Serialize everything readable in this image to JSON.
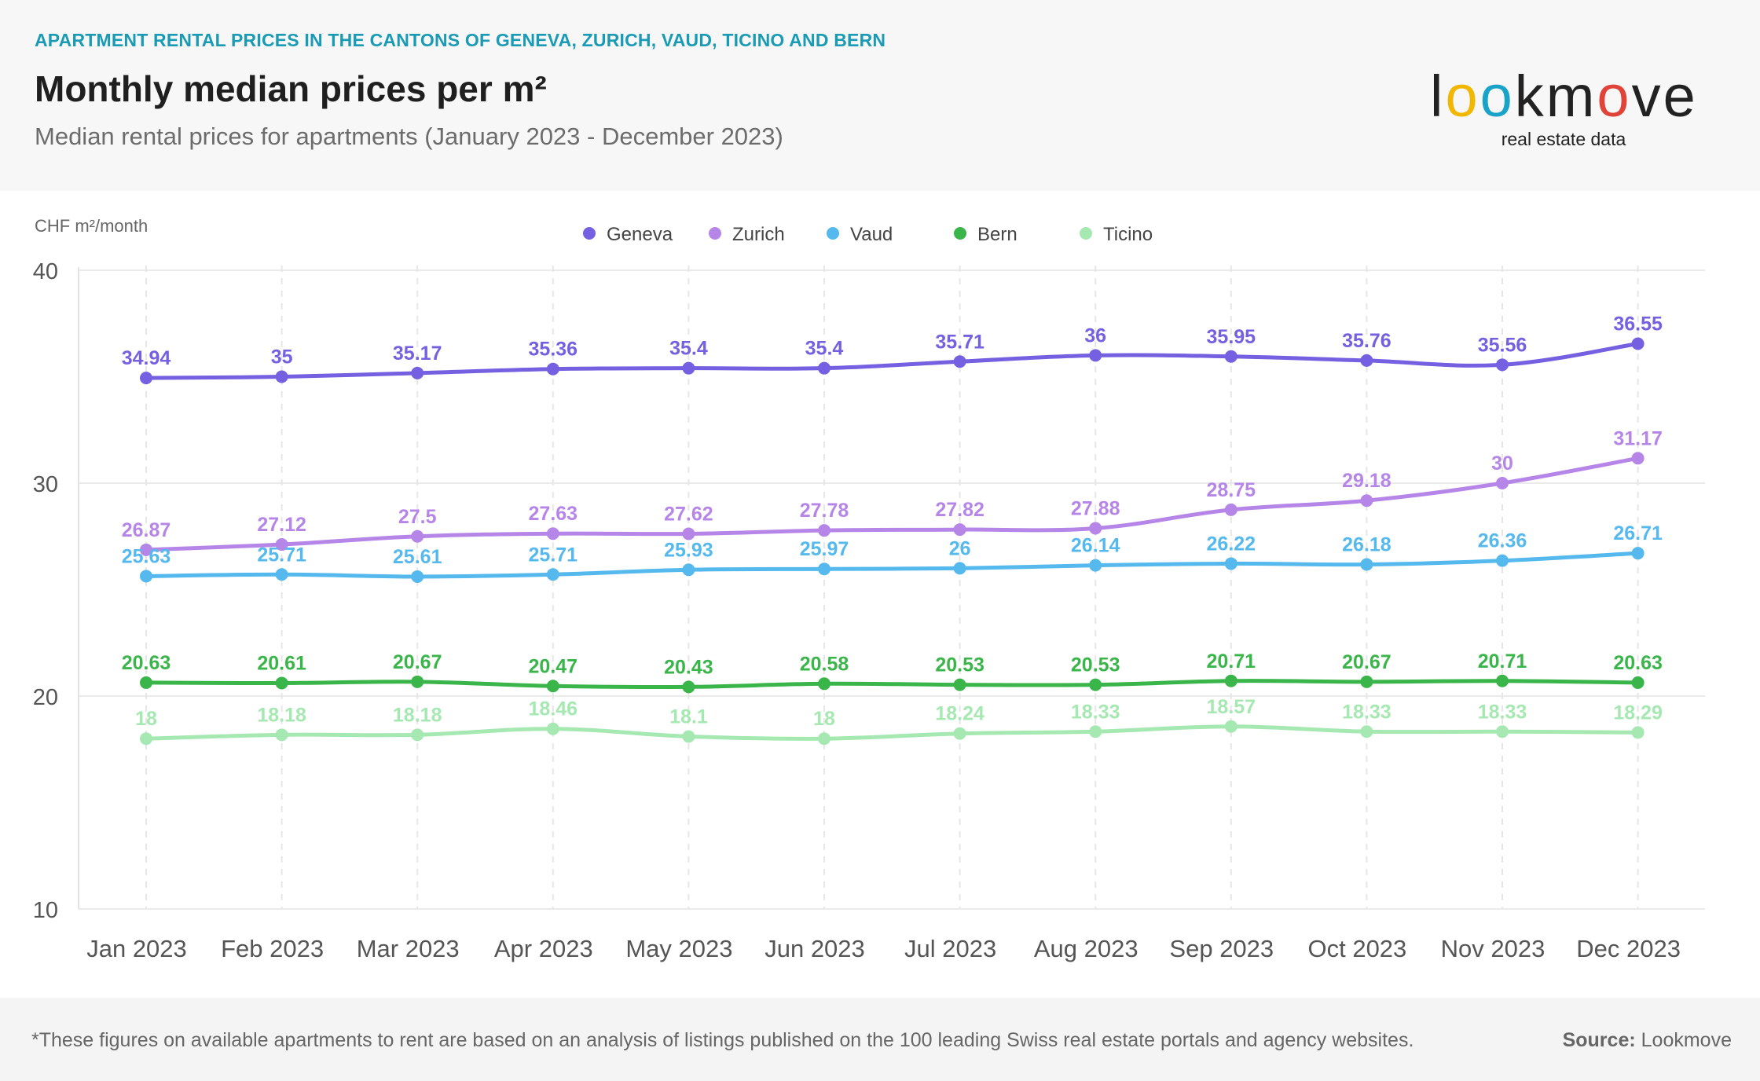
{
  "header": {
    "kicker": "APARTMENT RENTAL PRICES IN THE CANTONS OF GENEVA, ZURICH, VAUD, TICINO AND BERN",
    "title": "Monthly median prices per m²",
    "subtitle": "Median rental prices for apartments (January 2023 - December 2023)"
  },
  "logo": {
    "word": "lookmove",
    "tagline": "real estate data",
    "letter_colors": [
      "#222222",
      "#f2b705",
      "#1aa3c9",
      "#222222",
      "#222222",
      "#e0433a",
      "#222222",
      "#222222"
    ]
  },
  "footer": {
    "footnote": "*These figures on available apartments to rent are based on an analysis of listings published on the 100 leading Swiss real estate portals and agency websites.",
    "source_label": "Source:",
    "source_value": "Lookmove"
  },
  "chart_data": {
    "type": "line",
    "ylabel": "CHF m²/month",
    "ylim": [
      10,
      40
    ],
    "yticks": [
      10,
      20,
      30,
      40
    ],
    "grid": true,
    "legend_position": "top-center",
    "categories": [
      "Jan 2023",
      "Feb 2023",
      "Mar 2023",
      "Apr 2023",
      "May 2023",
      "Jun 2023",
      "Jul 2023",
      "Aug 2023",
      "Sep 2023",
      "Oct 2023",
      "Nov 2023",
      "Dec 2023"
    ],
    "series": [
      {
        "name": "Geneva",
        "color": "#7460e0",
        "values": [
          34.94,
          35,
          35.17,
          35.36,
          35.4,
          35.4,
          35.71,
          36,
          35.95,
          35.76,
          35.56,
          36.55
        ],
        "labels": [
          "34.94",
          "35",
          "35.17",
          "35.36",
          "35.4",
          "35.4",
          "35.71",
          "36",
          "35.95",
          "35.76",
          "35.56",
          "36.55"
        ]
      },
      {
        "name": "Zurich",
        "color": "#b685e8",
        "values": [
          26.87,
          27.12,
          27.5,
          27.63,
          27.62,
          27.78,
          27.82,
          27.88,
          28.75,
          29.18,
          30,
          31.17
        ],
        "labels": [
          "26.87",
          "27.12",
          "27.5",
          "27.63",
          "27.62",
          "27.78",
          "27.82",
          "27.88",
          "28.75",
          "29.18",
          "30",
          "31.17"
        ]
      },
      {
        "name": "Vaud",
        "color": "#55b9ee",
        "values": [
          25.63,
          25.71,
          25.61,
          25.71,
          25.93,
          25.97,
          26,
          26.14,
          26.22,
          26.18,
          26.36,
          26.71
        ],
        "labels": [
          "25.63",
          "25.71",
          "25.61",
          "25.71",
          "25.93",
          "25.97",
          "26",
          "26.14",
          "26.22",
          "26.18",
          "26.36",
          "26.71"
        ]
      },
      {
        "name": "Bern",
        "color": "#3ab54a",
        "values": [
          20.63,
          20.61,
          20.67,
          20.47,
          20.43,
          20.58,
          20.53,
          20.53,
          20.71,
          20.67,
          20.71,
          20.63
        ],
        "labels": [
          "20.63",
          "20.61",
          "20.67",
          "20.47",
          "20.43",
          "20.58",
          "20.53",
          "20.53",
          "20.71",
          "20.67",
          "20.71",
          "20.63"
        ]
      },
      {
        "name": "Ticino",
        "color": "#a6e8b1",
        "values": [
          18,
          18.18,
          18.18,
          18.46,
          18.1,
          18,
          18.24,
          18.33,
          18.57,
          18.33,
          18.33,
          18.29
        ],
        "labels": [
          "18",
          "18.18",
          "18.18",
          "18.46",
          "18.1",
          "18",
          "18.24",
          "18.33",
          "18.57",
          "18.33",
          "18.33",
          "18.29"
        ]
      }
    ]
  }
}
